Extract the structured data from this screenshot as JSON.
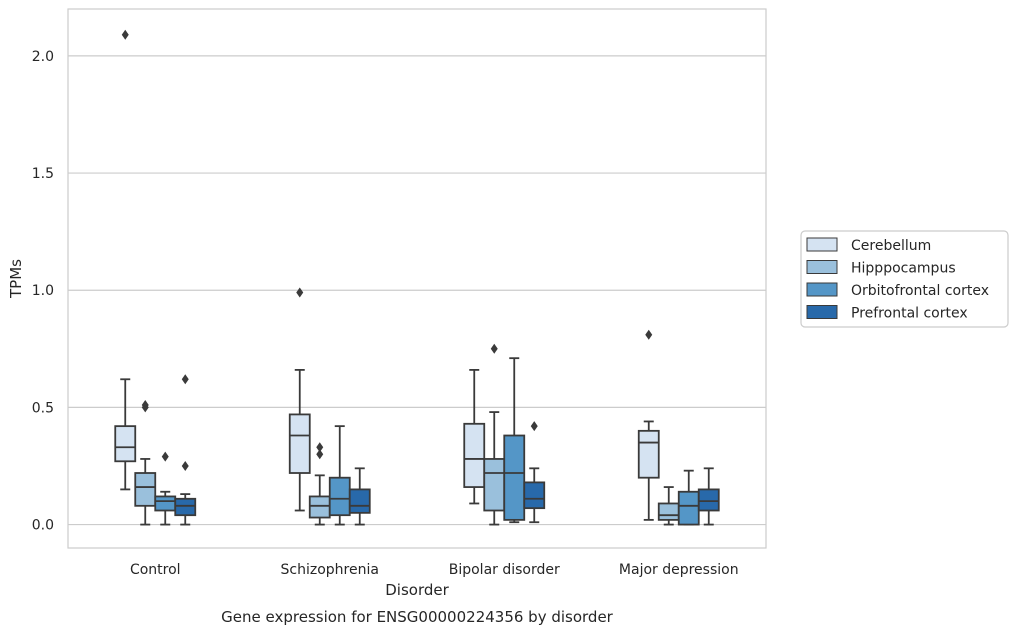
{
  "chart_data": {
    "type": "box",
    "title": "",
    "caption": "Gene expression for ENSG00000224356 by disorder",
    "xlabel": "Disorder",
    "ylabel": "TPMs",
    "ylim": [
      -0.1,
      2.2
    ],
    "yticks": [
      0.0,
      0.5,
      1.0,
      1.5,
      2.0
    ],
    "ytick_labels": [
      "0.0",
      "0.5",
      "1.0",
      "1.5",
      "2.0"
    ],
    "grid": "horizontal",
    "legend_position": "right",
    "categories": [
      "Control",
      "Schizophrenia",
      "Bipolar disorder",
      "Major depression"
    ],
    "series": [
      {
        "name": "Cerebellum",
        "color": "#d5e3f2",
        "boxes": [
          {
            "whislo": 0.15,
            "q1": 0.27,
            "med": 0.33,
            "q3": 0.42,
            "whishi": 0.62,
            "fliers": [
              2.09
            ]
          },
          {
            "whislo": 0.06,
            "q1": 0.22,
            "med": 0.38,
            "q3": 0.47,
            "whishi": 0.66,
            "fliers": [
              0.99
            ]
          },
          {
            "whislo": 0.09,
            "q1": 0.16,
            "med": 0.28,
            "q3": 0.43,
            "whishi": 0.66,
            "fliers": []
          },
          {
            "whislo": 0.02,
            "q1": 0.2,
            "med": 0.35,
            "q3": 0.4,
            "whishi": 0.44,
            "fliers": [
              0.81
            ]
          }
        ]
      },
      {
        "name": "Hipppocampus",
        "color": "#9ac0dc",
        "boxes": [
          {
            "whislo": 0.0,
            "q1": 0.08,
            "med": 0.16,
            "q3": 0.22,
            "whishi": 0.28,
            "fliers": [
              0.5,
              0.51
            ]
          },
          {
            "whislo": 0.0,
            "q1": 0.03,
            "med": 0.08,
            "q3": 0.12,
            "whishi": 0.21,
            "fliers": [
              0.3,
              0.33
            ]
          },
          {
            "whislo": 0.0,
            "q1": 0.06,
            "med": 0.22,
            "q3": 0.28,
            "whishi": 0.48,
            "fliers": [
              0.75
            ]
          },
          {
            "whislo": 0.0,
            "q1": 0.02,
            "med": 0.04,
            "q3": 0.09,
            "whishi": 0.16,
            "fliers": []
          }
        ]
      },
      {
        "name": "Orbitofrontal cortex",
        "color": "#5496c7",
        "boxes": [
          {
            "whislo": 0.0,
            "q1": 0.06,
            "med": 0.1,
            "q3": 0.12,
            "whishi": 0.14,
            "fliers": [
              0.29
            ]
          },
          {
            "whislo": 0.0,
            "q1": 0.04,
            "med": 0.11,
            "q3": 0.2,
            "whishi": 0.42,
            "fliers": []
          },
          {
            "whislo": 0.01,
            "q1": 0.02,
            "med": 0.22,
            "q3": 0.38,
            "whishi": 0.71,
            "fliers": []
          },
          {
            "whislo": 0.0,
            "q1": 0.0,
            "med": 0.08,
            "q3": 0.14,
            "whishi": 0.23,
            "fliers": []
          }
        ]
      },
      {
        "name": "Prefrontal cortex",
        "color": "#2869aa",
        "boxes": [
          {
            "whislo": 0.0,
            "q1": 0.04,
            "med": 0.08,
            "q3": 0.11,
            "whishi": 0.13,
            "fliers": [
              0.25,
              0.62
            ]
          },
          {
            "whislo": 0.0,
            "q1": 0.05,
            "med": 0.08,
            "q3": 0.15,
            "whishi": 0.24,
            "fliers": []
          },
          {
            "whislo": 0.01,
            "q1": 0.07,
            "med": 0.11,
            "q3": 0.18,
            "whishi": 0.24,
            "fliers": [
              0.42
            ]
          },
          {
            "whislo": 0.0,
            "q1": 0.06,
            "med": 0.1,
            "q3": 0.15,
            "whishi": 0.24,
            "fliers": []
          }
        ]
      }
    ]
  }
}
